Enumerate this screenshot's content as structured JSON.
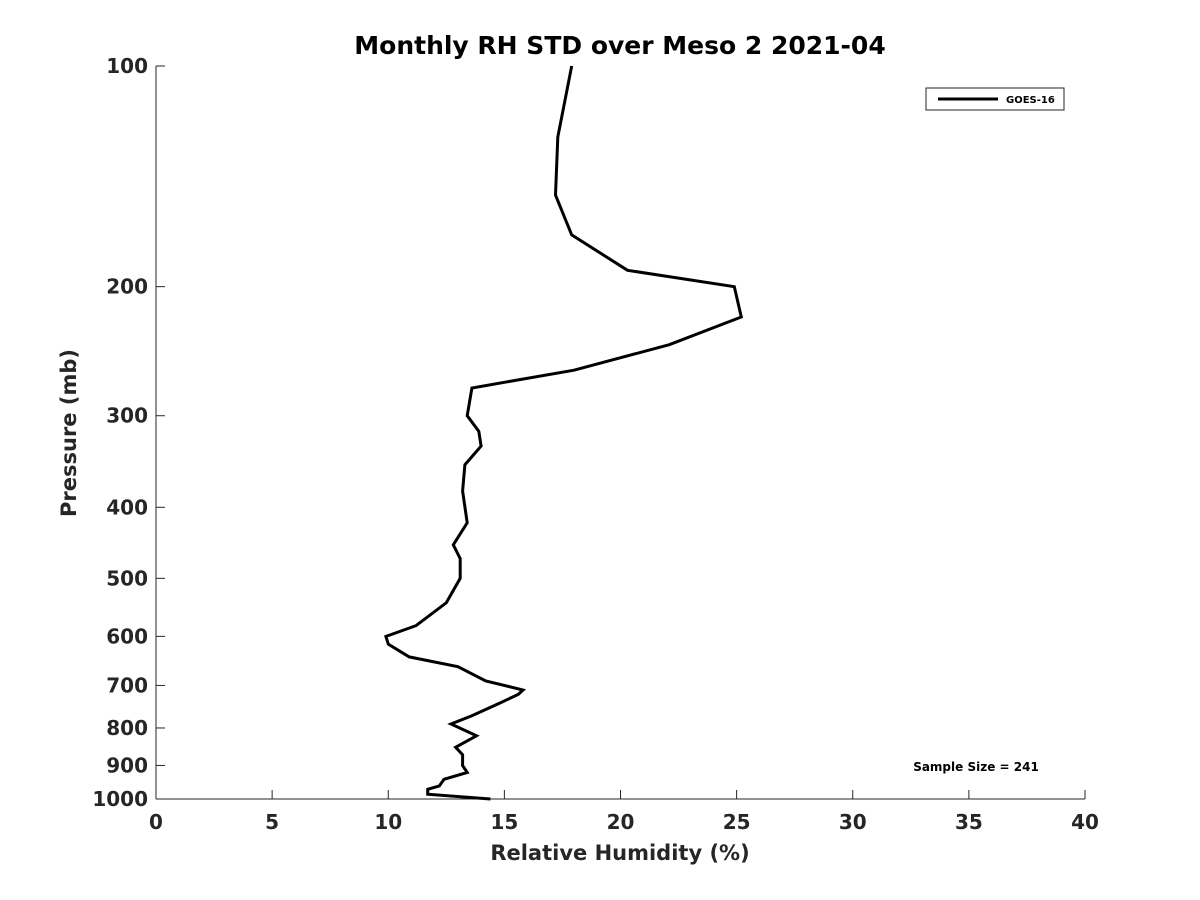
{
  "chart_data": {
    "type": "line",
    "title": "Monthly RH STD over Meso 2  2021-04",
    "xlabel": "Relative Humidity (%)",
    "ylabel": "Pressure (mb)",
    "xlim": [
      0,
      40
    ],
    "ylim": [
      1000,
      100
    ],
    "y_scale": "log",
    "x_ticks": [
      0,
      5,
      10,
      15,
      20,
      25,
      30,
      35,
      40
    ],
    "y_ticks": [
      100,
      200,
      300,
      400,
      500,
      600,
      700,
      800,
      900,
      1000
    ],
    "grid": false,
    "legend_position": "top-right",
    "series": [
      {
        "name": "GOES-16",
        "color": "#000000",
        "points": [
          [
            17.9,
            100
          ],
          [
            17.3,
            125
          ],
          [
            17.2,
            150
          ],
          [
            17.9,
            170
          ],
          [
            20.3,
            190
          ],
          [
            24.9,
            200
          ],
          [
            25.2,
            220
          ],
          [
            22.1,
            240
          ],
          [
            18.0,
            260
          ],
          [
            13.6,
            275
          ],
          [
            13.4,
            300
          ],
          [
            13.9,
            315
          ],
          [
            14.0,
            330
          ],
          [
            13.3,
            350
          ],
          [
            13.2,
            380
          ],
          [
            13.4,
            420
          ],
          [
            12.8,
            450
          ],
          [
            13.1,
            470
          ],
          [
            13.1,
            500
          ],
          [
            12.5,
            540
          ],
          [
            11.2,
            580
          ],
          [
            9.9,
            600
          ],
          [
            10.0,
            615
          ],
          [
            10.9,
            640
          ],
          [
            13.0,
            660
          ],
          [
            14.2,
            690
          ],
          [
            15.8,
            710
          ],
          [
            15.6,
            720
          ],
          [
            14.8,
            740
          ],
          [
            13.6,
            770
          ],
          [
            12.7,
            790
          ],
          [
            13.8,
            820
          ],
          [
            12.9,
            850
          ],
          [
            13.2,
            870
          ],
          [
            13.2,
            900
          ],
          [
            13.4,
            920
          ],
          [
            12.4,
            940
          ],
          [
            12.2,
            960
          ],
          [
            11.7,
            970
          ],
          [
            11.7,
            985
          ],
          [
            14.4,
            1000
          ]
        ]
      }
    ],
    "annotation": "Sample Size = 241"
  }
}
